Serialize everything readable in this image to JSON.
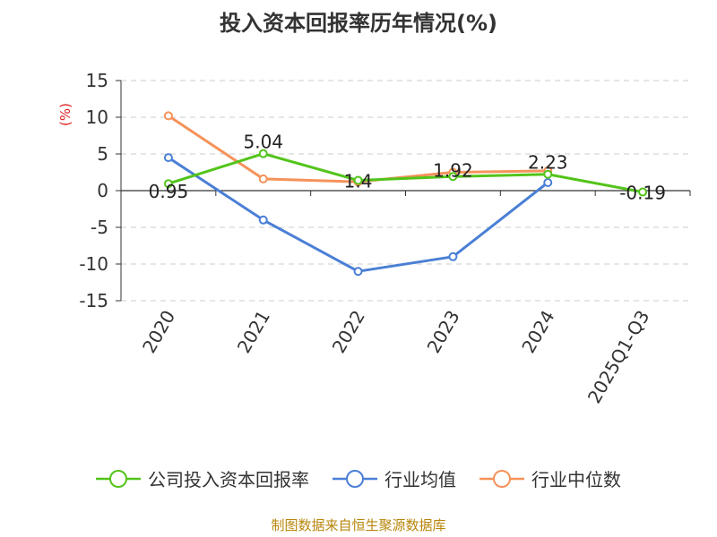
{
  "chart_data": {
    "type": "line",
    "title": "投入资本回报率历年情况(%)",
    "ylabel": "(%)",
    "categories": [
      "2020",
      "2021",
      "2022",
      "2023",
      "2024",
      "2025Q1-Q3"
    ],
    "ylim": [
      -15,
      15
    ],
    "yticks": [
      "15",
      "10",
      "5",
      "0",
      "-5",
      "-10",
      "-15"
    ],
    "grid": true,
    "legend_position": "bottom",
    "series": [
      {
        "name": "公司投入资本回报率",
        "color": "#52c41a",
        "values": [
          0.95,
          5.04,
          1.4,
          1.92,
          2.23,
          -0.19
        ],
        "labels": [
          "0.95",
          "5.04",
          "1.4",
          "1.92",
          "2.23",
          "-0.19"
        ]
      },
      {
        "name": "行业均值",
        "color": "#4a7fd6",
        "values": [
          4.5,
          -4.0,
          -11.0,
          -9.0,
          1.1,
          null
        ]
      },
      {
        "name": "行业中位数",
        "color": "#f5925a",
        "values": [
          10.2,
          1.6,
          1.2,
          2.5,
          2.7,
          null
        ]
      }
    ],
    "source": "制图数据来自恒生聚源数据库"
  }
}
